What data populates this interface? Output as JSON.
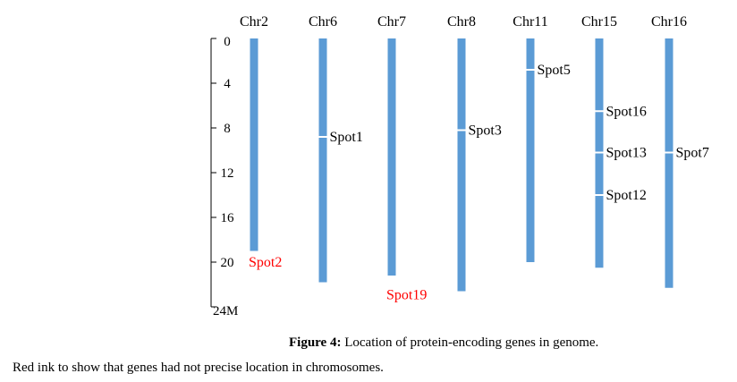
{
  "chart_data": {
    "type": "chromosome-map",
    "title": "",
    "ylabel_unit": "M",
    "ylim": [
      0,
      24
    ],
    "y_ticks": [
      {
        "value": 0,
        "label": "0"
      },
      {
        "value": 4,
        "label": "4"
      },
      {
        "value": 8,
        "label": "8"
      },
      {
        "value": 12,
        "label": "12"
      },
      {
        "value": 16,
        "label": "16"
      },
      {
        "value": 20,
        "label": "20"
      },
      {
        "value": 24,
        "label": "24M"
      }
    ],
    "chromosomes": [
      {
        "name": "Chr2",
        "length": 19.0,
        "spots": [
          {
            "label": "Spot2",
            "position": 20.0,
            "precise": false,
            "side": "label-left"
          }
        ]
      },
      {
        "name": "Chr6",
        "length": 21.8,
        "spots": [
          {
            "label": "Spot1",
            "position": 8.8,
            "precise": true,
            "side": "right"
          }
        ]
      },
      {
        "name": "Chr7",
        "length": 21.2,
        "spots": [
          {
            "label": "Spot19",
            "position": 22.5,
            "precise": false,
            "side": "below"
          }
        ]
      },
      {
        "name": "Chr8",
        "length": 22.6,
        "spots": [
          {
            "label": "Spot3",
            "position": 8.2,
            "precise": true,
            "side": "right"
          }
        ]
      },
      {
        "name": "Chr11",
        "length": 20.0,
        "spots": [
          {
            "label": "Spot5",
            "position": 2.8,
            "precise": true,
            "side": "right"
          }
        ]
      },
      {
        "name": "Chr15",
        "length": 20.5,
        "spots": [
          {
            "label": "Spot16",
            "position": 6.5,
            "precise": true,
            "side": "right"
          },
          {
            "label": "Spot13",
            "position": 10.2,
            "precise": true,
            "side": "right"
          },
          {
            "label": "Spot12",
            "position": 14.0,
            "precise": true,
            "side": "right"
          }
        ]
      },
      {
        "name": "Chr16",
        "length": 22.3,
        "spots": [
          {
            "label": "Spot7",
            "position": 10.2,
            "precise": true,
            "side": "right"
          }
        ]
      }
    ],
    "colors": {
      "chromosome": "#5b9bd5",
      "imprecise": "#ff0000",
      "text": "#000000",
      "marker": "#ffffff"
    }
  },
  "caption": {
    "figure_label": "Figure 4:",
    "figure_text": " Location of protein-encoding genes in genome.",
    "note": "Red ink to show that genes had not precise location in chromosomes."
  }
}
